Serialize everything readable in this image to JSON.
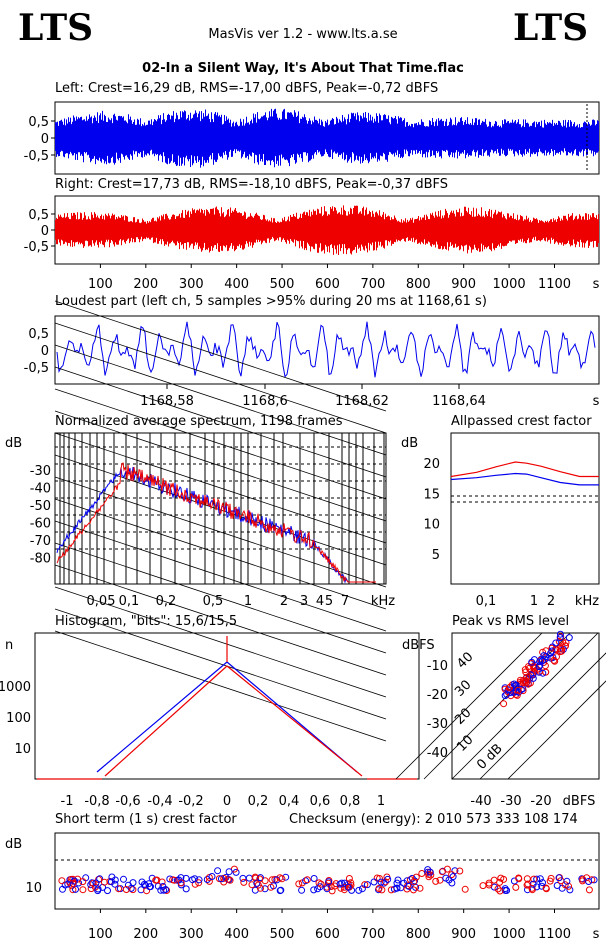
{
  "header": {
    "logo_left": "LTS",
    "logo_right": "LTS",
    "app_title": "MasVis ver 1.2 - www.lts.a.se",
    "file_name": "02-In a Silent Way, It's About That Time.flac"
  },
  "colors": {
    "left": "#0000ee",
    "right": "#ee0000",
    "grid": "#000000"
  },
  "left_label": "Left: Crest=16,29 dB, RMS=-17,00 dBFS, Peak=-0,72 dBFS",
  "right_label": "Right: Crest=17,73 dB, RMS=-18,10 dBFS, Peak=-0,37 dBFS",
  "loudest_label": "Loudest part (left  ch, 5 samples >95% during 20 ms at 1168,61 s)",
  "spectrum_label": "Normalized average spectrum, 1198 frames",
  "allpass_label": "Allpassed crest factor",
  "histogram_label": "Histogram, \"bits\": 15,6/15,5",
  "peakrms_label": "Peak vs RMS level",
  "crest_label": "Short term (1 s) crest factor",
  "checksum_label": "Checksum (energy):  2 010 573 333 108 174",
  "chart_data": [
    {
      "type": "line",
      "title": "Left: Crest=16,29 dB, RMS=-17,00 dBFS, Peak=-0,72 dBFS",
      "ylim": [
        -1,
        1
      ],
      "yticks": [
        "0,5",
        "0",
        "-0,5"
      ],
      "xlim": [
        0,
        1198
      ],
      "series": [
        {
          "name": "Left",
          "color": "#0000ee"
        }
      ]
    },
    {
      "type": "line",
      "title": "Right: Crest=17,73 dB, RMS=-18,10 dBFS, Peak=-0,37 dBFS",
      "ylim": [
        -1,
        1
      ],
      "yticks": [
        "0,5",
        "0",
        "-0,5"
      ],
      "xlim": [
        0,
        1198
      ],
      "xticks": [
        "100",
        "200",
        "300",
        "400",
        "500",
        "600",
        "700",
        "800",
        "900",
        "1000",
        "1100"
      ],
      "xunit": "s",
      "series": [
        {
          "name": "Right",
          "color": "#ee0000"
        }
      ]
    },
    {
      "type": "line",
      "title": "Loudest part (left  ch, 5 samples >95% during 20 ms at 1168,61 s)",
      "ylim": [
        -1,
        1
      ],
      "yticks": [
        "0,5",
        "0",
        "-0,5"
      ],
      "xticks": [
        "1168,58",
        "1168,6",
        "1168,62",
        "1168,64"
      ],
      "xunit": "s"
    },
    {
      "type": "line",
      "title": "Normalized average spectrum, 1198 frames",
      "ylabel": "dB",
      "yticks": [
        "-30",
        "-40",
        "-50",
        "-60",
        "-70",
        "-80"
      ],
      "xticks": [
        "0,05",
        "0,1",
        "0,2",
        "0,5",
        "1",
        "2",
        "3",
        "4",
        "5",
        "7"
      ],
      "xunit": "kHz",
      "series": [
        {
          "name": "Left",
          "color": "#0000ee"
        },
        {
          "name": "Right",
          "color": "#ee0000"
        }
      ]
    },
    {
      "type": "line",
      "title": "Allpassed crest factor",
      "ylabel": "dB",
      "ylim": [
        0,
        25
      ],
      "yticks": [
        "20",
        "15",
        "10",
        "5"
      ],
      "xticks": [
        "0,1",
        "1",
        "2"
      ],
      "xunit": "kHz",
      "x": [
        0.02,
        0.05,
        0.1,
        0.2,
        0.3,
        0.5,
        1,
        2,
        4
      ],
      "series": [
        {
          "name": "Left",
          "color": "#0000ee",
          "values": [
            17.3,
            17.6,
            18.0,
            18.3,
            18.2,
            17.6,
            16.8,
            16.4,
            16.4
          ]
        },
        {
          "name": "Right",
          "color": "#ee0000",
          "values": [
            17.8,
            18.5,
            19.4,
            20.2,
            20.0,
            19.5,
            18.6,
            17.8,
            17.8
          ]
        }
      ]
    },
    {
      "type": "line",
      "title": "Histogram, \"bits\": 15,6/15,5",
      "ylabel": "n",
      "yticks": [
        "1000",
        "100",
        "10"
      ],
      "xticks": [
        "-1",
        "-0,8",
        "-0,6",
        "-0,4",
        "-0,2",
        "0",
        "0,2",
        "0,4",
        "0,6",
        "0,8",
        "1"
      ],
      "series": [
        {
          "name": "Left",
          "color": "#0000ee"
        },
        {
          "name": "Right",
          "color": "#ee0000"
        }
      ]
    },
    {
      "type": "scatter",
      "title": "Peak vs RMS level",
      "ylabel": "dBFS",
      "xlabel": "dBFS",
      "yticks": [
        "-10",
        "-20",
        "-30",
        "-40"
      ],
      "xticks": [
        "-40",
        "-30",
        "-20"
      ],
      "diagonal_labels": [
        "40",
        "30",
        "20",
        "10",
        "0 dB"
      ]
    },
    {
      "type": "scatter",
      "title": "Short term (1 s) crest factor",
      "ylabel": "dB",
      "yticks": [
        "10"
      ],
      "xticks": [
        "100",
        "200",
        "300",
        "400",
        "500",
        "600",
        "700",
        "800",
        "900",
        "1000",
        "1100"
      ],
      "xunit": "s"
    }
  ]
}
